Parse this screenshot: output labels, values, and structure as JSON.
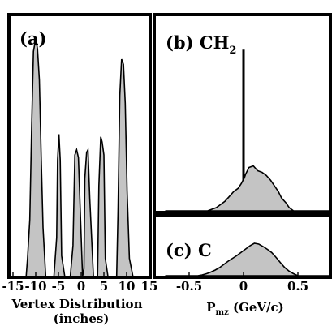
{
  "chart_data": [
    {
      "type": "area",
      "panel_label": "(a)",
      "xlabel": "Vertex Distribution",
      "xlabel_line2": "(inches)",
      "ylabel": "",
      "xlim": [
        -15,
        15
      ],
      "x_ticks": [
        -15,
        -10,
        -5,
        0,
        5,
        10,
        15
      ],
      "x_tick_labels": [
        "-15",
        "-10",
        "-5",
        "0",
        "5",
        "10",
        "15"
      ],
      "series": [
        {
          "x": [
            -15.2,
            -12.1,
            -11.8,
            -11.3,
            -10.9,
            -10.5,
            -10.0,
            -9.6,
            -9.2,
            -8.8,
            -8.4,
            -7.8,
            -6.0,
            -5.4,
            -5.2,
            -4.9,
            -4.6,
            -4.3,
            -3.6,
            -2.4,
            -1.8,
            -1.4,
            -1.0,
            -0.6,
            0.3,
            0.6,
            0.8,
            1.2,
            1.5,
            1.9,
            2.7,
            3.6,
            3.9,
            4.3,
            4.6,
            5.0,
            5.3,
            5.9,
            7.8,
            8.1,
            8.5,
            8.9,
            9.3,
            9.7,
            10.1,
            10.6,
            11.4,
            15.2
          ],
          "y": [
            0,
            0,
            0.07,
            0.22,
            0.58,
            0.87,
            0.92,
            0.88,
            0.76,
            0.47,
            0.19,
            0,
            0,
            0.15,
            0.45,
            0.55,
            0.45,
            0.08,
            0,
            0,
            0.12,
            0.47,
            0.49,
            0.46,
            0,
            0.03,
            0.38,
            0.48,
            0.49,
            0.3,
            0,
            0,
            0.35,
            0.54,
            0.52,
            0.47,
            0.07,
            0,
            0,
            0.25,
            0.7,
            0.84,
            0.82,
            0.67,
            0.33,
            0.07,
            0,
            0
          ]
        }
      ]
    },
    {
      "type": "area",
      "panel_label": "(b) CH",
      "panel_label_sub": "2",
      "xlim": [
        -0.72,
        0.82
      ],
      "series": [
        {
          "x": [
            -0.72,
            -0.33,
            -0.29,
            -0.25,
            -0.21,
            -0.17,
            -0.13,
            -0.09,
            -0.05,
            -0.02,
            -0.005,
            -0.005,
            0.005,
            0.005,
            0.02,
            0.05,
            0.09,
            0.13,
            0.17,
            0.21,
            0.25,
            0.29,
            0.32,
            0.35,
            0.39,
            0.42,
            0.46,
            0.82
          ],
          "y": [
            0,
            0,
            0.01,
            0.02,
            0.04,
            0.06,
            0.09,
            0.12,
            0.14,
            0.17,
            0.19,
            1.0,
            1.0,
            0.2,
            0.23,
            0.27,
            0.28,
            0.25,
            0.24,
            0.22,
            0.19,
            0.15,
            0.12,
            0.08,
            0.05,
            0.02,
            0,
            0
          ]
        }
      ]
    },
    {
      "type": "area",
      "panel_label": "(c) C",
      "xlabel": "P",
      "xlabel_sub": "mz",
      "xlabel_rest": " (GeV/c)",
      "xlim": [
        -0.72,
        0.82
      ],
      "x_ticks": [
        -0.5,
        0,
        0.5
      ],
      "x_tick_labels": [
        "-0.5",
        "0",
        "0.5"
      ],
      "series": [
        {
          "x": [
            -0.72,
            -0.42,
            -0.38,
            -0.34,
            -0.3,
            -0.26,
            -0.22,
            -0.18,
            -0.14,
            -0.1,
            -0.06,
            -0.02,
            0.02,
            0.06,
            0.1,
            0.14,
            0.18,
            0.22,
            0.26,
            0.3,
            0.34,
            0.38,
            0.42,
            0.46,
            0.5,
            0.82
          ],
          "y": [
            0,
            0,
            0.02,
            0.05,
            0.09,
            0.14,
            0.2,
            0.28,
            0.36,
            0.43,
            0.5,
            0.58,
            0.66,
            0.74,
            0.8,
            0.78,
            0.72,
            0.65,
            0.57,
            0.45,
            0.32,
            0.2,
            0.11,
            0.05,
            0,
            0
          ]
        }
      ]
    }
  ]
}
